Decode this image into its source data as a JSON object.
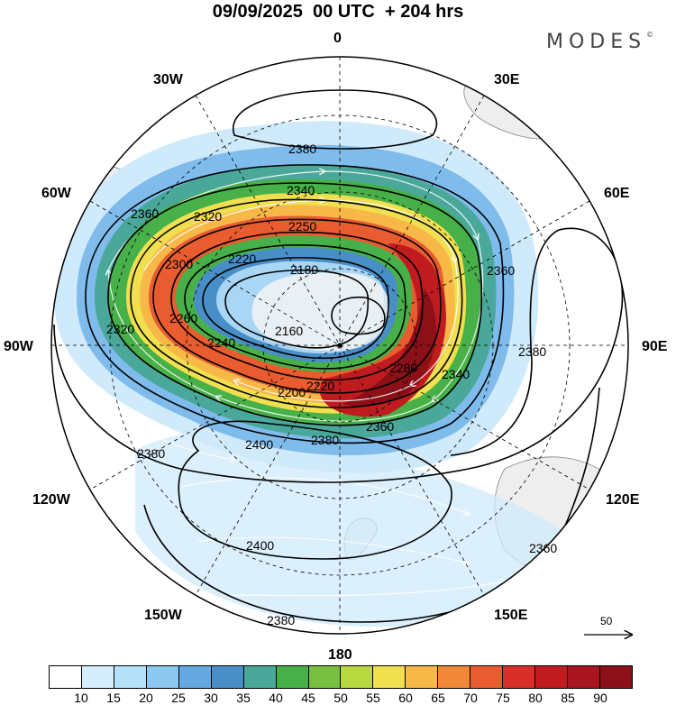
{
  "header": {
    "title": "09/09/2025  00 UTC  + 204 hrs",
    "brand": "MODES",
    "brand_mark": "©"
  },
  "longitude_labels": {
    "lon_0": "0",
    "lon_30e": "30E",
    "lon_60e": "60E",
    "lon_90e": "90E",
    "lon_120e": "120E",
    "lon_150e": "150E",
    "lon_180": "180",
    "lon_150w": "150W",
    "lon_120w": "120W",
    "lon_90w": "90W",
    "lon_60w": "60W",
    "lon_30w": "30W"
  },
  "reference_vector": {
    "label": "50"
  },
  "colorbar": {
    "colors": [
      "#ffffff",
      "#d4eefc",
      "#b4e0f8",
      "#8cc8ef",
      "#66a8e0",
      "#4a8ec8",
      "#4aa89a",
      "#48b048",
      "#78c040",
      "#b8d840",
      "#f0e050",
      "#f8b848",
      "#f08838",
      "#e85c30",
      "#d83028",
      "#c01c20",
      "#a81420",
      "#8c1018"
    ],
    "ticks": [
      "10",
      "15",
      "20",
      "25",
      "30",
      "35",
      "40",
      "45",
      "50",
      "55",
      "60",
      "65",
      "70",
      "75",
      "80",
      "85",
      "90"
    ]
  },
  "contour_labels": [
    "2380",
    "2360",
    "2340",
    "2320",
    "2250",
    "2300",
    "2220",
    "2180",
    "2160",
    "2320",
    "2260",
    "2240",
    "2280",
    "2220",
    "2200",
    "2340",
    "2360",
    "2380",
    "2380",
    "2360",
    "2400",
    "2380",
    "2400",
    "2360",
    "2380"
  ],
  "shading": {
    "colors": {
      "c15": "#cfeafb",
      "c20": "#a9d6f5",
      "c25": "#7fbbeb",
      "c35": "#4a8ec8",
      "c40": "#4aa89a",
      "c45": "#48b048",
      "c55": "#f0e050",
      "c60": "#f8b848",
      "c70": "#e85c30",
      "c80": "#c01c20",
      "c90": "#8c1018"
    }
  }
}
